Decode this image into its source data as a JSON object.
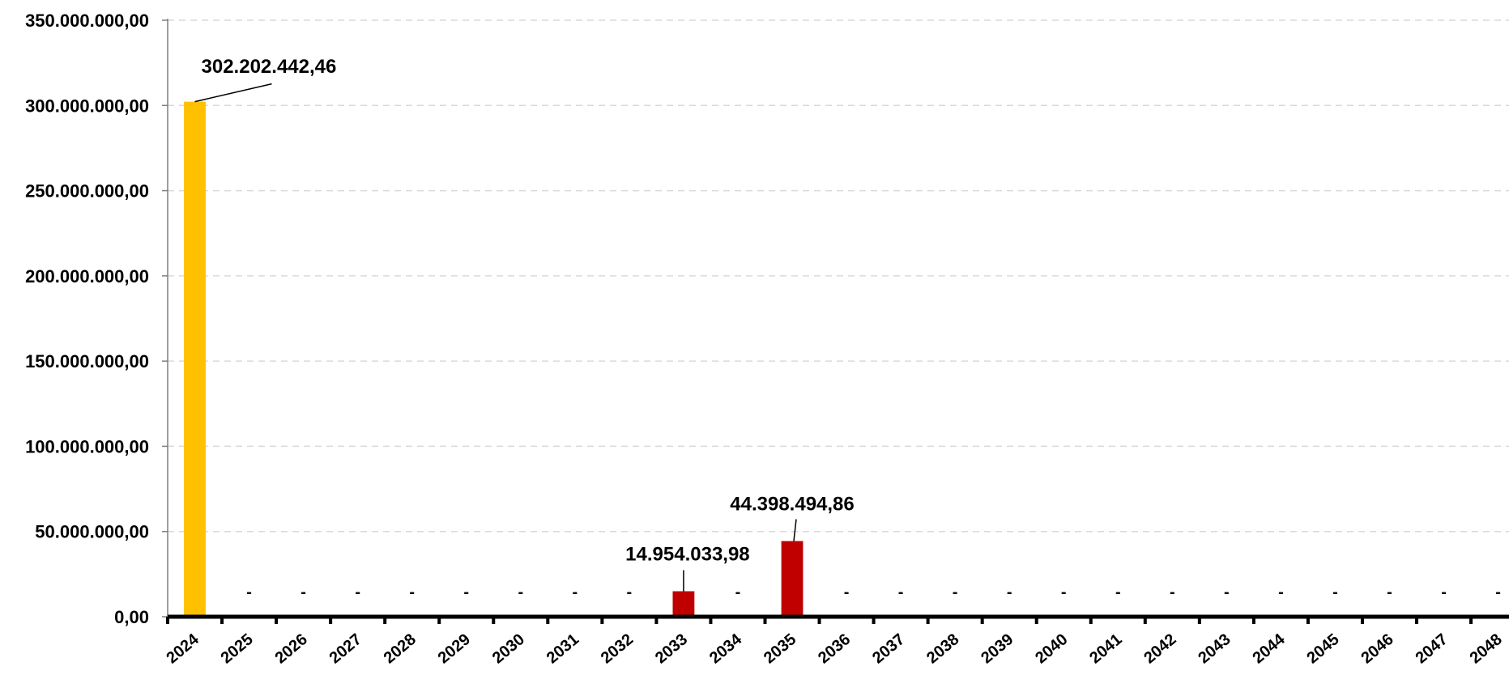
{
  "chart_data": {
    "type": "bar",
    "title": "",
    "xlabel": "",
    "ylabel": "",
    "ylim": [
      0,
      350000000
    ],
    "ytick_values": [
      0,
      50000000,
      100000000,
      150000000,
      200000000,
      250000000,
      300000000,
      350000000
    ],
    "ytick_labels": [
      "0,00",
      "50.000.000,00",
      "100.000.000,00",
      "150.000.000,00",
      "200.000.000,00",
      "250.000.000,00",
      "300.000.000,00",
      "350.000.000,00"
    ],
    "grid": true,
    "legend": "none",
    "categories": [
      "2024",
      "2025",
      "2026",
      "2027",
      "2028",
      "2029",
      "2030",
      "2031",
      "2032",
      "2033",
      "2034",
      "2035",
      "2036",
      "2037",
      "2038",
      "2039",
      "2040",
      "2041",
      "2042",
      "2043",
      "2044",
      "2045",
      "2046",
      "2047",
      "2048"
    ],
    "values": [
      302202442.46,
      0,
      0,
      0,
      0,
      0,
      0,
      0,
      0,
      14954033.98,
      0,
      44398494.86,
      0,
      0,
      0,
      0,
      0,
      0,
      0,
      0,
      0,
      0,
      0,
      0,
      0
    ],
    "bar_colors": [
      "#FFC000",
      "#C00000",
      "#C00000",
      "#C00000",
      "#C00000",
      "#C00000",
      "#C00000",
      "#C00000",
      "#C00000",
      "#C00000",
      "#C00000",
      "#C00000",
      "#C00000",
      "#C00000",
      "#C00000",
      "#C00000",
      "#C00000",
      "#C00000",
      "#C00000",
      "#C00000",
      "#C00000",
      "#C00000",
      "#C00000",
      "#C00000",
      "#C00000"
    ],
    "data_labels": [
      "302.202.442,46",
      "-",
      "-",
      "-",
      "-",
      "-",
      "-",
      "-",
      "-",
      "14.954.033,98",
      "-",
      "44.398.494,86",
      "-",
      "-",
      "-",
      "-",
      "-",
      "-",
      "-",
      "-",
      "-",
      "-",
      "-",
      "-",
      "-"
    ]
  },
  "colors": {
    "highlight_bar": "#FFC000",
    "bar": "#C00000",
    "gridline": "#D9D9D9",
    "axis": "#000000"
  }
}
